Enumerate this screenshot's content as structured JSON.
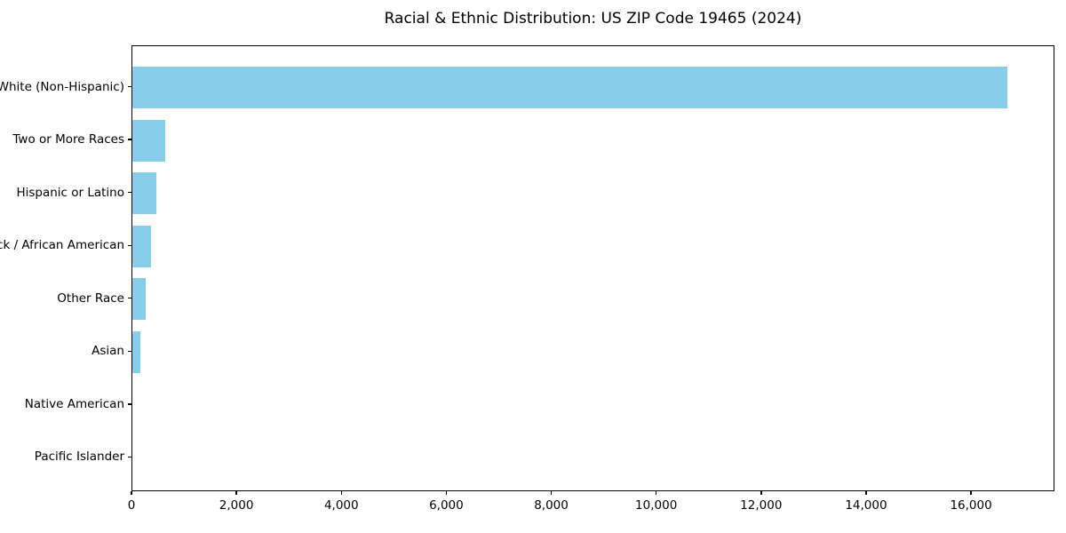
{
  "chart_data": {
    "type": "bar",
    "orientation": "horizontal",
    "title": "Racial & Ethnic Distribution: US ZIP Code 19465 (2024)",
    "categories": [
      "White (Non-Hispanic)",
      "Two or More Races",
      "Hispanic or Latino",
      "Black / African American",
      "Other Race",
      "Asian",
      "Native American",
      "Pacific Islander"
    ],
    "values": [
      16700,
      620,
      450,
      350,
      260,
      150,
      0,
      0
    ],
    "xlabel": "",
    "ylabel": "",
    "xlim": [
      0,
      17590
    ],
    "xticks": [
      {
        "value": 0,
        "label": "0"
      },
      {
        "value": 2000,
        "label": "2,000"
      },
      {
        "value": 4000,
        "label": "4,000"
      },
      {
        "value": 6000,
        "label": "6,000"
      },
      {
        "value": 8000,
        "label": "8,000"
      },
      {
        "value": 10000,
        "label": "10,000"
      },
      {
        "value": 12000,
        "label": "12,000"
      },
      {
        "value": 14000,
        "label": "14,000"
      },
      {
        "value": 16000,
        "label": "16,000"
      }
    ],
    "bar_color": "#87CEEB",
    "axis_color": "#000000",
    "text_color": "#000000",
    "grid": false,
    "legend": false
  }
}
